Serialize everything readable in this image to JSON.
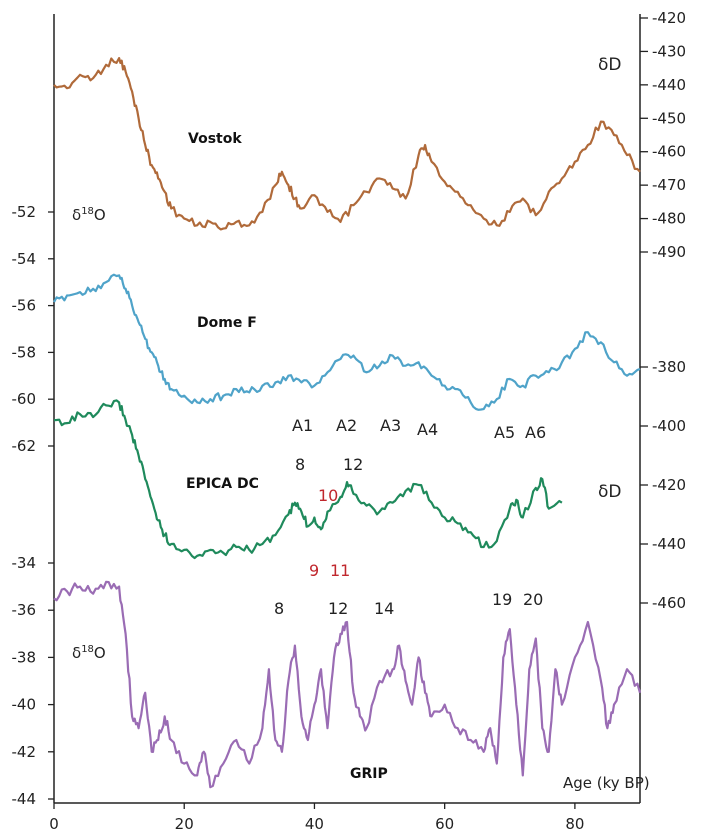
{
  "chart_data": {
    "type": "line",
    "x_axis": {
      "label": "Age (ky BP)",
      "range": [
        0,
        90
      ],
      "ticks": [
        0,
        20,
        40,
        60,
        80
      ]
    },
    "left_axis_upper": {
      "label": "δ18O",
      "label_main": "δ",
      "label_sup": "18",
      "label_end": "O",
      "range": [
        -63,
        -51
      ],
      "ticks": [
        -52,
        -54,
        -56,
        -58,
        -60,
        -62
      ]
    },
    "left_axis_lower": {
      "label": "δ18O",
      "label_main": "δ",
      "label_sup": "18",
      "label_end": "O",
      "range": [
        -44,
        -33
      ],
      "ticks": [
        -34,
        -36,
        -38,
        -40,
        -42,
        -44
      ]
    },
    "right_axis_upper": {
      "label": "δD",
      "range": [
        -492,
        -420
      ],
      "ticks": [
        -420,
        -430,
        -440,
        -450,
        -460,
        -470,
        -480,
        -490
      ]
    },
    "right_axis_lower": {
      "label": "δD",
      "range": [
        -468,
        -370
      ],
      "ticks": [
        -380,
        -400,
        -420,
        -440,
        -460
      ]
    },
    "colors": {
      "vostok": "#b06a3a",
      "domef": "#4fa3c9",
      "epica": "#1f8a5c",
      "grip": "#9a6cb4",
      "red_label": "#c0272d"
    },
    "series": [
      {
        "name": "Vostok",
        "axis": "right_axis_upper",
        "x": [
          0,
          2,
          4,
          6,
          8,
          10,
          11,
          12,
          13,
          14,
          15,
          16,
          17,
          18,
          20,
          22,
          24,
          26,
          28,
          30,
          32,
          34,
          35,
          36,
          37,
          38,
          40,
          42,
          44,
          46,
          48,
          50,
          52,
          54,
          56,
          57,
          58,
          60,
          62,
          64,
          66,
          68,
          70,
          72,
          74,
          76,
          78,
          80,
          82,
          84,
          86,
          88,
          90
        ],
        "y": [
          -440,
          -441,
          -437,
          -438,
          -434,
          -432,
          -436,
          -442,
          -450,
          -458,
          -464,
          -468,
          -472,
          -477,
          -480,
          -482,
          -481,
          -483,
          -481,
          -482,
          -478,
          -470,
          -466,
          -470,
          -474,
          -477,
          -473,
          -478,
          -481,
          -476,
          -472,
          -468,
          -471,
          -474,
          -461,
          -458,
          -463,
          -469,
          -472,
          -476,
          -480,
          -482,
          -478,
          -474,
          -479,
          -472,
          -468,
          -463,
          -458,
          -451,
          -455,
          -461,
          -466
        ]
      },
      {
        "name": "Dome F",
        "axis": "right_axis_upper",
        "x": [
          0,
          2,
          4,
          6,
          8,
          10,
          11,
          12,
          13,
          14,
          15,
          16,
          17,
          18,
          20,
          22,
          24,
          26,
          28,
          30,
          32,
          34,
          36,
          38,
          40,
          42,
          44,
          46,
          48,
          50,
          52,
          54,
          56,
          58,
          60,
          62,
          64,
          66,
          68,
          70,
          72,
          74,
          76,
          78,
          80,
          82,
          84,
          86,
          88,
          90
        ],
        "y": [
          -505,
          -503,
          -502,
          -501,
          -499,
          -497,
          -501,
          -506,
          -511,
          -516,
          -520,
          -524,
          -528,
          -531,
          -533,
          -535,
          -534,
          -533,
          -531,
          -532,
          -530,
          -529,
          -527,
          -529,
          -530,
          -526,
          -522,
          -521,
          -526,
          -524,
          -521,
          -524,
          -523,
          -527,
          -530,
          -531,
          -535,
          -537,
          -534,
          -528,
          -530,
          -527,
          -526,
          -523,
          -519,
          -514,
          -517,
          -523,
          -527,
          -525
        ]
      },
      {
        "name": "EPICA DC",
        "axis": "right_axis_lower",
        "x": [
          0,
          2,
          4,
          6,
          8,
          10,
          11,
          12,
          13,
          14,
          15,
          16,
          17,
          18,
          20,
          22,
          24,
          26,
          28,
          30,
          32,
          34,
          36,
          37,
          38,
          39,
          40,
          41,
          42,
          44,
          45,
          46,
          48,
          50,
          52,
          54,
          56,
          58,
          60,
          62,
          64,
          66,
          68,
          70,
          71,
          72,
          74,
          75,
          76,
          78
        ],
        "y": [
          -398,
          -399,
          -396,
          -397,
          -393,
          -392,
          -398,
          -403,
          -410,
          -418,
          -425,
          -432,
          -437,
          -440,
          -442,
          -444,
          -442,
          -443,
          -441,
          -442,
          -440,
          -437,
          -430,
          -426,
          -429,
          -434,
          -431,
          -435,
          -429,
          -424,
          -419,
          -423,
          -427,
          -429,
          -426,
          -422,
          -420,
          -426,
          -431,
          -433,
          -436,
          -441,
          -439,
          -428,
          -425,
          -431,
          -421,
          -418,
          -428,
          -426
        ]
      },
      {
        "name": "GRIP",
        "axis": "left_axis_lower",
        "x": [
          0,
          2,
          4,
          6,
          8,
          10,
          11,
          12,
          13,
          14,
          15,
          16,
          17,
          18,
          20,
          22,
          23,
          24,
          26,
          28,
          30,
          32,
          33,
          34,
          35,
          36,
          37,
          38,
          39,
          40,
          41,
          42,
          43,
          44,
          45,
          46,
          47,
          48,
          50,
          52,
          53,
          54,
          55,
          56,
          57,
          58,
          60,
          62,
          64,
          66,
          67,
          68,
          69,
          70,
          71,
          72,
          73,
          74,
          75,
          76,
          77,
          78,
          80,
          82,
          84,
          85,
          86,
          88,
          90
        ],
        "y": [
          -35.5,
          -35.2,
          -35.0,
          -35.3,
          -34.8,
          -35.0,
          -37.0,
          -40.5,
          -41.0,
          -39.5,
          -42.0,
          -41.5,
          -40.5,
          -41.5,
          -42.5,
          -43.0,
          -42.0,
          -43.5,
          -42.5,
          -41.5,
          -42.5,
          -41.0,
          -38.5,
          -41.5,
          -42.0,
          -39.0,
          -37.5,
          -40.5,
          -41.5,
          -40.0,
          -38.5,
          -41.0,
          -38.0,
          -37.0,
          -36.5,
          -39.5,
          -40.5,
          -41.0,
          -39.0,
          -38.5,
          -37.5,
          -39.0,
          -40.0,
          -38.0,
          -39.5,
          -40.5,
          -40.0,
          -41.0,
          -41.5,
          -42.0,
          -41.0,
          -42.5,
          -38.0,
          -36.8,
          -40.0,
          -43.0,
          -38.5,
          -37.2,
          -41.0,
          -42.0,
          -38.5,
          -40.0,
          -38.0,
          -36.5,
          -39.0,
          -41.0,
          -40.0,
          -38.5,
          -39.5
        ]
      }
    ],
    "core_labels": [
      "Vostok",
      "Dome F",
      "EPICA DC",
      "GRIP"
    ],
    "annotations": {
      "a_events": [
        "A1",
        "A2",
        "A3",
        "A4",
        "A5",
        "A6"
      ],
      "epica_black": [
        "8",
        "12"
      ],
      "epica_red": [
        "10",
        "9",
        "11"
      ],
      "grip_numbers": [
        "8",
        "12",
        "14",
        "19",
        "20"
      ]
    }
  }
}
